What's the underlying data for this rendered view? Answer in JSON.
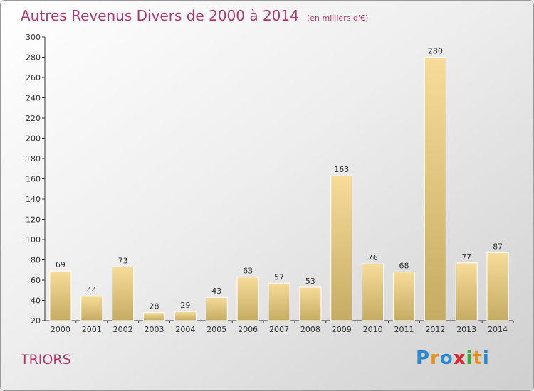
{
  "title": "Autres Revenus Divers de 2000 à 2014",
  "subtitle": "(en milliers d'€)",
  "town": "TRIORS",
  "logo": {
    "text": "Proxiti",
    "letters": [
      "P",
      "r",
      "o",
      "x",
      "i",
      "t",
      "i"
    ],
    "colors": [
      "#2a8ad0",
      "#e8901e",
      "#2a8ad0",
      "#e2262e",
      "#3fa83a",
      "#e8901e",
      "#2a8ad0"
    ]
  },
  "colors": {
    "title": "#b3386a",
    "bar_light": "#f6dc98",
    "bar_dark": "#c6ab62"
  },
  "chart_data": {
    "type": "bar",
    "title": "Autres Revenus Divers de 2000 à 2014",
    "subtitle": "(en milliers d'€)",
    "categories": [
      "2000",
      "2001",
      "2002",
      "2003",
      "2004",
      "2005",
      "2006",
      "2007",
      "2008",
      "2009",
      "2010",
      "2011",
      "2012",
      "2013",
      "2014"
    ],
    "values": [
      69,
      44,
      73,
      28,
      29,
      43,
      63,
      57,
      53,
      163,
      76,
      68,
      280,
      77,
      87
    ],
    "ylim": [
      20,
      300
    ],
    "yticks": [
      20,
      40,
      60,
      80,
      100,
      120,
      140,
      160,
      180,
      200,
      220,
      240,
      260,
      280,
      300
    ],
    "grid": false,
    "legend": "none"
  }
}
